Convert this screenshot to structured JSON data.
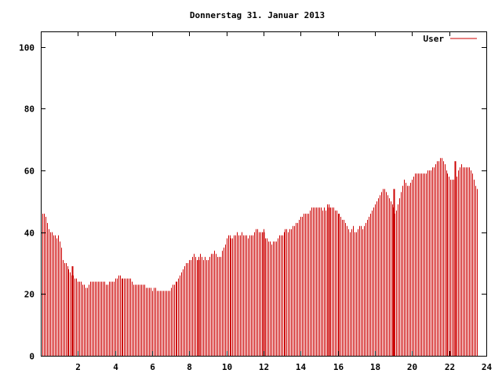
{
  "chart_data": {
    "type": "bar",
    "title": "Donnerstag 31. Januar 2013",
    "xlabel": "",
    "ylabel": "",
    "xlim": [
      0,
      24
    ],
    "ylim": [
      0,
      105
    ],
    "xticks": [
      "2",
      "4",
      "6",
      "8",
      "10",
      "12",
      "14",
      "16",
      "18",
      "20",
      "22",
      "24"
    ],
    "yticks": [
      "0",
      "20",
      "40",
      "60",
      "80",
      "100"
    ],
    "grid": false,
    "legend_position": "top-right",
    "series": [
      {
        "name": "User",
        "color": "#cc0000",
        "interval_hours": 0.0833,
        "values": [
          46,
          46,
          45,
          43,
          41,
          40,
          40,
          39,
          39,
          38,
          39,
          37,
          35,
          31,
          30,
          30,
          29,
          28,
          27,
          26,
          26,
          25,
          25,
          24,
          24,
          24,
          23,
          23,
          22,
          22,
          23,
          24,
          24,
          24,
          24,
          24,
          24,
          24,
          24,
          24,
          24,
          23,
          23,
          24,
          24,
          24,
          24,
          25,
          25,
          26,
          26,
          25,
          25,
          25,
          25,
          25,
          25,
          25,
          24,
          23,
          23,
          23,
          23,
          23,
          23,
          23,
          23,
          22,
          22,
          22,
          22,
          21,
          22,
          22,
          21,
          21,
          21,
          21,
          21,
          21,
          21,
          21,
          21,
          22,
          23,
          23,
          24,
          24,
          25,
          26,
          27,
          28,
          29,
          30,
          30,
          31,
          31,
          32,
          33,
          32,
          31,
          32,
          33,
          32,
          31,
          32,
          31,
          31,
          32,
          33,
          33,
          34,
          33,
          32,
          32,
          32,
          34,
          35,
          36,
          38,
          39,
          39,
          38,
          38,
          39,
          39,
          40,
          39,
          39,
          40,
          39,
          39,
          39,
          38,
          39,
          39,
          39,
          40,
          41,
          41,
          40,
          40,
          40,
          41,
          38,
          38,
          37,
          37,
          36,
          37,
          37,
          37,
          38,
          39,
          39,
          39,
          40,
          41,
          41,
          40,
          41,
          41,
          42,
          42,
          43,
          43,
          44,
          45,
          45,
          46,
          46,
          46,
          46,
          47,
          48,
          48,
          48,
          48,
          48,
          48,
          48,
          47,
          48,
          47,
          49,
          49,
          48,
          48,
          48,
          47,
          47,
          46,
          46,
          45,
          44,
          44,
          43,
          42,
          41,
          40,
          41,
          42,
          40,
          40,
          41,
          42,
          42,
          41,
          42,
          43,
          44,
          45,
          46,
          47,
          48,
          49,
          50,
          51,
          52,
          53,
          54,
          54,
          53,
          52,
          51,
          50,
          49,
          48,
          46,
          47,
          49,
          51,
          53,
          55,
          57,
          56,
          55,
          55,
          56,
          57,
          58,
          59,
          59,
          59,
          59,
          59,
          59,
          59,
          59,
          60,
          60,
          60,
          61,
          61,
          62,
          63,
          63,
          64,
          64,
          63,
          62,
          60,
          59,
          58,
          57,
          57,
          57,
          57,
          58,
          60,
          61,
          62,
          61,
          61,
          61,
          61,
          61,
          60,
          59,
          57,
          55,
          54
        ]
      }
    ],
    "spikes": [
      {
        "x": 1.7,
        "value": 29
      },
      {
        "x": 8.5,
        "value": 31
      },
      {
        "x": 12.0,
        "value": 40
      },
      {
        "x": 15.5,
        "value": 48
      },
      {
        "x": 19.0,
        "value": 54
      },
      {
        "x": 22.3,
        "value": 63
      }
    ]
  }
}
